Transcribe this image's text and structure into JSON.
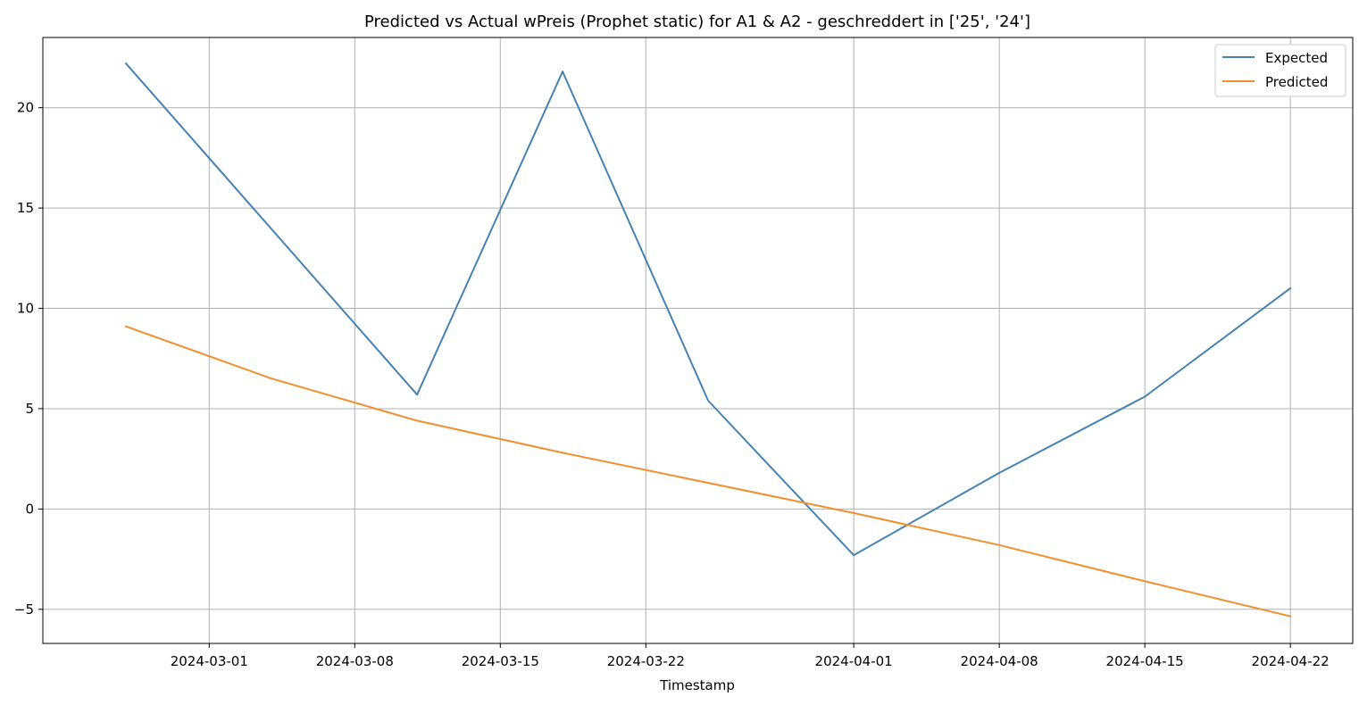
{
  "chart_data": {
    "type": "line",
    "title": "Predicted vs Actual wPreis (Prophet static) for A1 & A2 -  geschreddert in ['25', '24']",
    "xlabel": "Timestamp",
    "ylabel": "",
    "x_type": "date",
    "xlim": [
      "2024-02-22",
      "2024-04-25"
    ],
    "ylim": [
      -6.7,
      23.5
    ],
    "x_ticks": [
      "2024-03-01",
      "2024-03-08",
      "2024-03-15",
      "2024-03-22",
      "2024-04-01",
      "2024-04-08",
      "2024-04-15",
      "2024-04-22"
    ],
    "y_ticks": [
      -5,
      0,
      5,
      10,
      15,
      20
    ],
    "grid": true,
    "legend_position": "upper right",
    "series": [
      {
        "name": "Expected",
        "color": "#4682b4",
        "x": [
          "2024-02-26",
          "2024-03-11",
          "2024-03-18",
          "2024-03-25",
          "2024-04-01",
          "2024-04-08",
          "2024-04-15",
          "2024-04-22"
        ],
        "y": [
          22.2,
          5.7,
          21.8,
          5.4,
          -2.3,
          1.8,
          5.6,
          11.0
        ]
      },
      {
        "name": "Predicted",
        "color": "#f28e2b",
        "x": [
          "2024-02-26",
          "2024-03-04",
          "2024-03-11",
          "2024-03-18",
          "2024-03-25",
          "2024-04-01",
          "2024-04-08",
          "2024-04-15",
          "2024-04-22"
        ],
        "y": [
          9.1,
          6.5,
          4.4,
          2.8,
          1.3,
          -0.2,
          -1.8,
          -3.6,
          -5.35
        ]
      }
    ]
  }
}
